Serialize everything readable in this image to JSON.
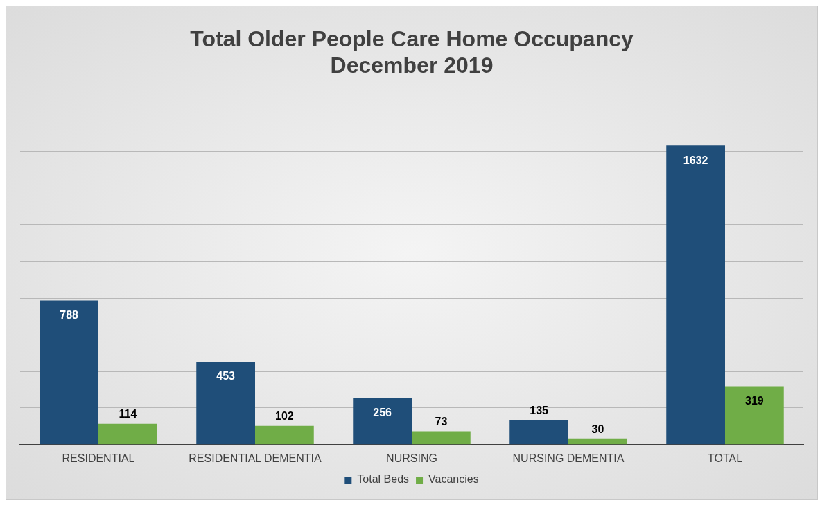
{
  "chart_data": {
    "type": "bar",
    "title": "Total Older People Care Home Occupancy\nDecember 2019",
    "categories": [
      "RESIDENTIAL",
      "RESIDENTIAL DEMENTIA",
      "NURSING",
      "NURSING DEMENTIA",
      "TOTAL"
    ],
    "series": [
      {
        "name": "Total Beds",
        "color": "#1f4e79",
        "values": [
          788,
          453,
          256,
          135,
          1632
        ]
      },
      {
        "name": "Vacancies",
        "color": "#70ad47",
        "values": [
          114,
          102,
          73,
          30,
          319
        ]
      }
    ],
    "yticks": [
      {
        "value": 0,
        "label": null
      },
      {
        "value": 200,
        "label": null
      },
      {
        "value": 400,
        "label": null
      },
      {
        "value": 600,
        "label": null
      },
      {
        "value": 800,
        "label": null
      },
      {
        "value": 1000,
        "label": null
      },
      {
        "value": 1200,
        "label": null
      },
      {
        "value": 1400,
        "label": null
      },
      {
        "value": 1600,
        "label": null
      }
    ],
    "tick_labels": "x",
    "grid": "y",
    "legend": "bottom",
    "data_labels": true
  }
}
